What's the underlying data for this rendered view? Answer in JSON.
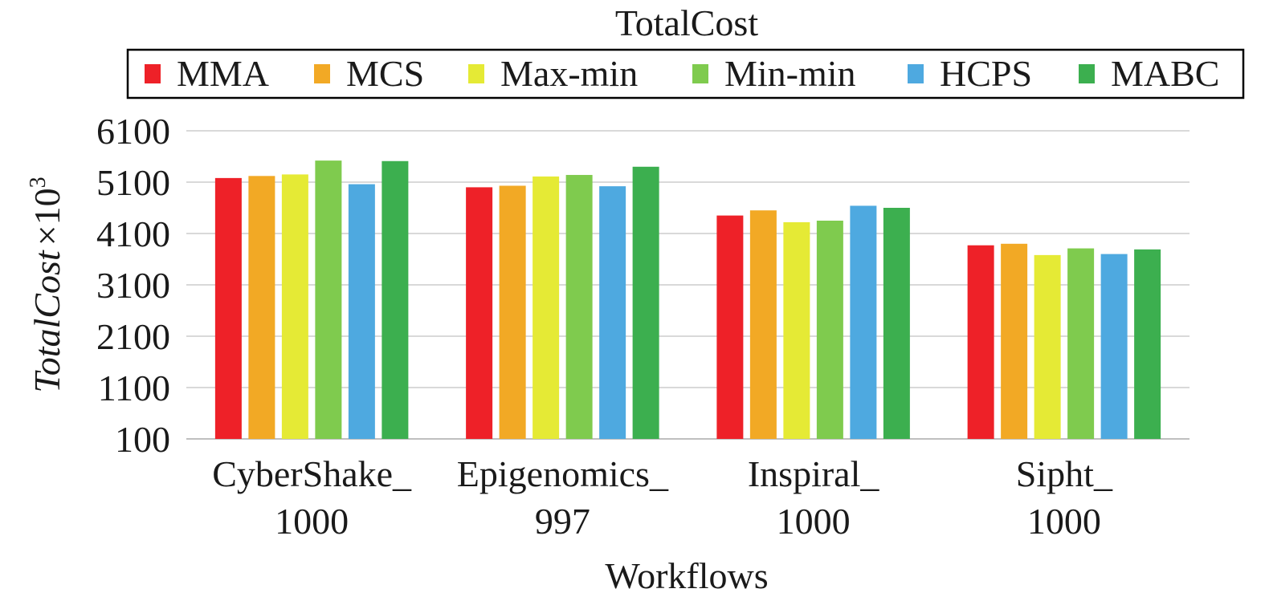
{
  "chart_data": {
    "type": "bar",
    "title": "TotalCost",
    "xlabel": "Workflows",
    "ylabel": {
      "main": "TotalCost",
      "suffix": "×10",
      "exponent": "3"
    },
    "ylim": [
      100,
      6100
    ],
    "yticks": [
      100,
      1100,
      2100,
      3100,
      4100,
      5100,
      6100
    ],
    "grid": true,
    "legend_position": "top",
    "categories": [
      {
        "line1": "CyberShake_",
        "line2": "1000"
      },
      {
        "line1": "Epigenomics_",
        "line2": "997"
      },
      {
        "line1": "Inspiral_",
        "line2": "1000"
      },
      {
        "line1": "Sipht_",
        "line2": "1000"
      }
    ],
    "series": [
      {
        "name": "MMA",
        "color": "#ee2128",
        "values": [
          5180,
          5000,
          4450,
          3870
        ]
      },
      {
        "name": "MCS",
        "color": "#f2a925",
        "values": [
          5220,
          5030,
          4550,
          3900
        ]
      },
      {
        "name": "Max-min",
        "color": "#e5ea35",
        "values": [
          5250,
          5210,
          4320,
          3680
        ]
      },
      {
        "name": "Min-min",
        "color": "#7fcb4e",
        "values": [
          5520,
          5240,
          4350,
          3810
        ]
      },
      {
        "name": "HCPS",
        "color": "#4ea9e0",
        "values": [
          5060,
          5020,
          4640,
          3700
        ]
      },
      {
        "name": "MABC",
        "color": "#3caf4f",
        "values": [
          5510,
          5400,
          4600,
          3790
        ]
      }
    ]
  }
}
